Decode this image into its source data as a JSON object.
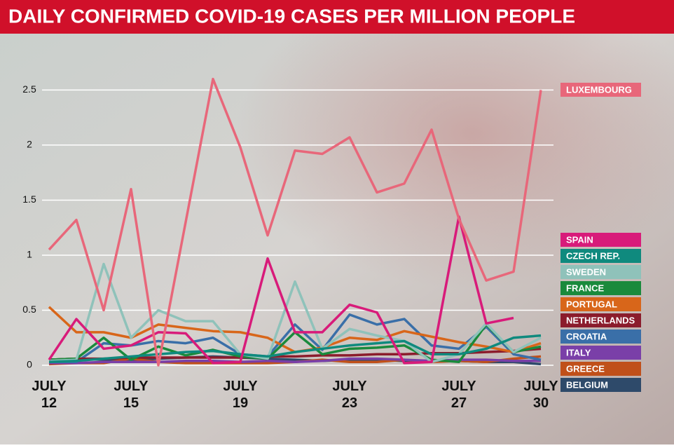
{
  "chart_data": {
    "type": "line",
    "title": "DAILY CONFIRMED COVID-19 CASES PER MILLION PEOPLE",
    "categories": [
      "JULY 12",
      null,
      null,
      "JULY 15",
      null,
      null,
      null,
      "JULY 19",
      null,
      null,
      null,
      "JULY 23",
      null,
      null,
      null,
      "JULY 27",
      null,
      null,
      "JULY 30"
    ],
    "ylim": [
      0,
      2.7
    ],
    "yticks": [
      0,
      0.5,
      1,
      1.5,
      2,
      2.5
    ],
    "grid": true,
    "series": [
      {
        "name": "LUXEMBOURG",
        "color": "#e8677a",
        "values": [
          1.05,
          1.32,
          0.5,
          1.6,
          0.0,
          1.3,
          2.6,
          1.98,
          1.18,
          1.95,
          1.92,
          2.07,
          1.57,
          1.65,
          2.14,
          1.33,
          0.77,
          0.85,
          2.5
        ]
      },
      {
        "name": "SPAIN",
        "color": "#d81b7a",
        "values": [
          0.05,
          0.42,
          0.15,
          0.18,
          0.3,
          0.29,
          0.02,
          0.03,
          0.97,
          0.3,
          0.3,
          0.55,
          0.48,
          0.02,
          0.03,
          1.35,
          0.38,
          0.43,
          null
        ]
      },
      {
        "name": "CZECH REP.",
        "color": "#0f8a7e",
        "values": [
          0.03,
          0.04,
          0.06,
          0.08,
          0.1,
          0.12,
          0.13,
          0.1,
          0.08,
          0.12,
          0.15,
          0.18,
          0.2,
          0.22,
          0.1,
          0.1,
          0.15,
          0.25,
          0.27
        ]
      },
      {
        "name": "SWEDEN",
        "color": "#8fc2ba",
        "values": [
          0.04,
          0.05,
          0.92,
          0.25,
          0.5,
          0.4,
          0.4,
          0.1,
          0.06,
          0.76,
          0.15,
          0.33,
          0.27,
          0.22,
          0.03,
          0.1,
          0.38,
          0.12,
          0.25
        ]
      },
      {
        "name": "FRANCE",
        "color": "#1a8a3c",
        "values": [
          0.05,
          0.06,
          0.25,
          0.05,
          0.17,
          0.09,
          0.14,
          0.08,
          0.06,
          0.3,
          0.1,
          0.15,
          0.16,
          0.18,
          0.05,
          0.03,
          0.37,
          0.12,
          0.17
        ]
      },
      {
        "name": "PORTUGAL",
        "color": "#d8661a",
        "values": [
          0.53,
          0.3,
          0.3,
          0.25,
          0.37,
          0.34,
          0.31,
          0.3,
          0.25,
          0.12,
          0.16,
          0.25,
          0.23,
          0.31,
          0.26,
          0.21,
          0.17,
          0.12,
          0.2
        ]
      },
      {
        "name": "NETHERLANDS",
        "color": "#8b1c2c",
        "values": [
          0.05,
          0.06,
          0.06,
          0.07,
          0.07,
          0.07,
          0.07,
          0.07,
          0.08,
          0.08,
          0.09,
          0.09,
          0.1,
          0.1,
          0.11,
          0.11,
          0.12,
          0.13,
          0.15
        ]
      },
      {
        "name": "CROATIA",
        "color": "#3a6fa8",
        "values": [
          0.03,
          0.03,
          0.2,
          0.18,
          0.22,
          0.2,
          0.25,
          0.1,
          0.08,
          0.37,
          0.14,
          0.46,
          0.37,
          0.42,
          0.18,
          0.15,
          0.35,
          0.1,
          0.05
        ]
      },
      {
        "name": "ITALY",
        "color": "#7a3fa8",
        "values": [
          0.02,
          0.02,
          0.03,
          0.03,
          0.03,
          0.04,
          0.04,
          0.03,
          0.04,
          0.03,
          0.04,
          0.06,
          0.06,
          0.05,
          0.04,
          0.05,
          0.05,
          0.04,
          0.04
        ]
      },
      {
        "name": "GREECE",
        "color": "#c0501a",
        "values": [
          0.01,
          0.02,
          0.02,
          0.06,
          0.03,
          0.02,
          0.02,
          0.02,
          0.02,
          0.03,
          0.05,
          0.03,
          0.03,
          0.05,
          0.03,
          0.04,
          0.03,
          0.06,
          0.08
        ]
      },
      {
        "name": "BELGIUM",
        "color": "#2e4a6a",
        "values": [
          0.05,
          0.06,
          0.05,
          0.05,
          0.06,
          0.07,
          0.08,
          0.07,
          0.06,
          0.05,
          0.04,
          0.05,
          0.05,
          0.04,
          0.04,
          0.04,
          0.03,
          0.03,
          0.01
        ]
      }
    ]
  }
}
